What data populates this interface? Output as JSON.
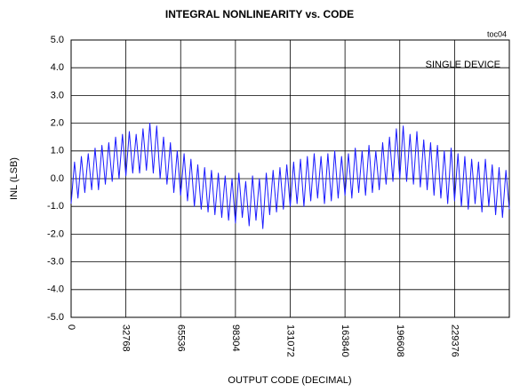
{
  "chart_data": {
    "type": "line",
    "title": "INTEGRAL NONLINEARITY vs. CODE",
    "xlabel": "OUTPUT CODE (DECIMAL)",
    "ylabel": "INL (LSB)",
    "annotations": [
      "toc04",
      "SINGLE DEVICE"
    ],
    "xlim": [
      0,
      262144
    ],
    "xticks": [
      0,
      32768,
      65536,
      98304,
      131072,
      163840,
      196608,
      229376
    ],
    "ylim": [
      -5,
      5
    ],
    "yticks": [
      {
        "value": -5,
        "label": "-5.0"
      },
      {
        "value": -4,
        "label": "-4.0"
      },
      {
        "value": -3,
        "label": "-3.0"
      },
      {
        "value": -2,
        "label": "-2.0"
      },
      {
        "value": -1,
        "label": "-1.0"
      },
      {
        "value": 0,
        "label": "0.0"
      },
      {
        "value": 1,
        "label": "1.0"
      },
      {
        "value": 2,
        "label": "2.0"
      },
      {
        "value": 3,
        "label": "3.0"
      },
      {
        "value": 4,
        "label": "4.0"
      },
      {
        "value": 5,
        "label": "5.0"
      }
    ],
    "grid": true,
    "x": [
      0,
      2048,
      4096,
      6144,
      8192,
      10240,
      12288,
      14336,
      16384,
      18432,
      20480,
      22528,
      24576,
      26624,
      28672,
      30720,
      32768,
      34816,
      36864,
      38912,
      40960,
      43008,
      45056,
      47104,
      49152,
      51200,
      53248,
      55296,
      57344,
      59392,
      61440,
      63488,
      65536,
      67584,
      69632,
      71680,
      73728,
      75776,
      77824,
      79872,
      81920,
      83968,
      86016,
      88064,
      90112,
      92160,
      94208,
      96256,
      98304,
      100352,
      102400,
      104448,
      106496,
      108544,
      110592,
      112640,
      114688,
      116736,
      118784,
      120832,
      122880,
      124928,
      126976,
      129024,
      131072,
      133120,
      135168,
      137216,
      139264,
      141312,
      143360,
      145408,
      147456,
      149504,
      151552,
      153600,
      155648,
      157696,
      159744,
      161792,
      163840,
      165888,
      167936,
      169984,
      172032,
      174080,
      176128,
      178176,
      180224,
      182272,
      184320,
      186368,
      188416,
      190464,
      192512,
      194560,
      196608,
      198656,
      200704,
      202752,
      204800,
      206848,
      208896,
      210944,
      212992,
      215040,
      217088,
      219136,
      221184,
      223232,
      225280,
      227328,
      229376,
      231424,
      233472,
      235520,
      237568,
      239616,
      241664,
      243712,
      245760,
      247808,
      249856,
      251904,
      253952,
      256000,
      258048,
      260096,
      262144
    ],
    "series": [
      {
        "color": "#1a1aff",
        "values": [
          -0.9,
          0.6,
          -0.7,
          0.8,
          -0.5,
          0.9,
          -0.4,
          1.1,
          -0.4,
          1.2,
          -0.2,
          1.3,
          -0.1,
          1.5,
          0.0,
          1.6,
          0.1,
          1.7,
          0.2,
          1.6,
          0.2,
          1.8,
          0.3,
          2.0,
          0.2,
          1.9,
          0.0,
          1.5,
          -0.2,
          1.3,
          -0.5,
          1.0,
          -0.6,
          0.9,
          -0.8,
          0.7,
          -1.0,
          0.5,
          -1.1,
          0.4,
          -1.2,
          0.3,
          -1.3,
          0.2,
          -1.4,
          0.1,
          -1.5,
          0.0,
          -1.6,
          0.2,
          -1.4,
          -0.1,
          -1.7,
          0.1,
          -1.5,
          0.0,
          -1.8,
          0.2,
          -1.3,
          0.3,
          -1.2,
          0.4,
          -1.1,
          0.5,
          -1.0,
          0.6,
          -0.9,
          0.7,
          -1.0,
          0.8,
          -0.8,
          0.9,
          -0.7,
          0.8,
          -0.9,
          0.9,
          -0.8,
          1.0,
          -0.7,
          0.8,
          -0.6,
          0.9,
          -0.7,
          1.1,
          -0.5,
          1.0,
          -0.6,
          1.2,
          -0.5,
          1.0,
          -0.4,
          1.3,
          -0.2,
          1.5,
          -0.1,
          1.8,
          0.0,
          1.9,
          -0.1,
          1.6,
          -0.2,
          1.7,
          -0.3,
          1.4,
          -0.4,
          1.3,
          -0.6,
          1.2,
          -0.7,
          1.0,
          -0.9,
          1.1,
          -0.8,
          0.9,
          -1.0,
          0.8,
          -1.1,
          0.7,
          -0.9,
          0.6,
          -1.2,
          0.7,
          -1.0,
          0.5,
          -1.3,
          0.4,
          -1.4,
          0.3,
          -1.1
        ]
      }
    ]
  }
}
